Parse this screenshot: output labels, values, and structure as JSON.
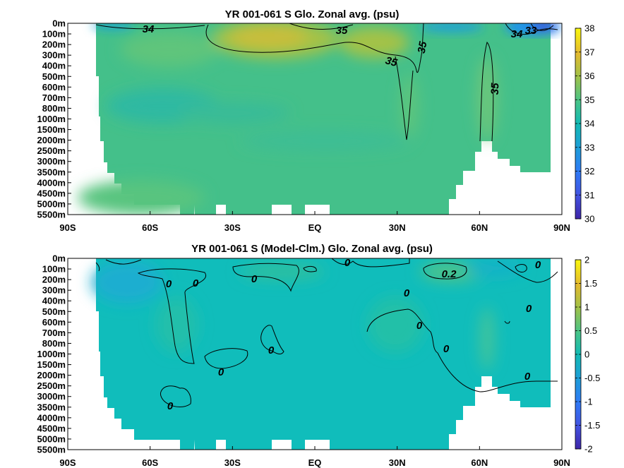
{
  "charts": [
    {
      "title": "YR 001-061 S Glo. Zonal avg. (psu)",
      "colorbar": {
        "ticks": [
          "38",
          "37",
          "36",
          "35",
          "34",
          "33",
          "32",
          "31",
          "30"
        ],
        "range": [
          30,
          38
        ]
      },
      "contour_labels": [
        "34",
        "35",
        "35",
        "35",
        "35",
        "34",
        "33"
      ]
    },
    {
      "title": "YR 001-061 S (Model-Clm.) Glo. Zonal avg. (psu)",
      "colorbar": {
        "ticks": [
          "2",
          "1.5",
          "1",
          "0.5",
          "0",
          "-0.5",
          "-1",
          "-1.5",
          "-2"
        ],
        "range": [
          -2,
          2
        ]
      },
      "contour_labels": [
        "0",
        "0",
        "0",
        "0.2",
        "0",
        "0",
        "0",
        "0",
        "0",
        "0",
        "0",
        "0",
        "0",
        "0"
      ]
    }
  ],
  "axes": {
    "y_ticks": [
      "0m",
      "100m",
      "200m",
      "300m",
      "400m",
      "500m",
      "600m",
      "700m",
      "800m",
      "1000m",
      "1500m",
      "2000m",
      "2500m",
      "3000m",
      "3500m",
      "4000m",
      "4500m",
      "5000m",
      "5500m"
    ],
    "x_ticks": [
      "90S",
      "60S",
      "30S",
      "EQ",
      "30N",
      "60N",
      "90N"
    ]
  },
  "chart_data": [
    {
      "type": "heatmap",
      "title": "YR 001-061 S Glo. Zonal avg. (psu)",
      "x": [
        "90S",
        "60S",
        "30S",
        "EQ",
        "30N",
        "60N",
        "90N"
      ],
      "y": [
        "0m",
        "100m",
        "200m",
        "300m",
        "400m",
        "500m",
        "600m",
        "700m",
        "800m",
        "1000m",
        "1500m",
        "2000m",
        "2500m",
        "3000m",
        "3500m",
        "4000m",
        "4500m",
        "5000m",
        "5500m"
      ],
      "colorbar_range": [
        30,
        38
      ],
      "contour_levels": [
        33,
        34,
        35
      ],
      "notes_values": {
        "background_deep": 34.7,
        "subtropical_max": 36.5,
        "arctic_surface": 32.5
      }
    },
    {
      "type": "heatmap",
      "title": "YR 001-061 S (Model-Clm.) Glo. Zonal avg. (psu)",
      "x": [
        "90S",
        "60S",
        "30S",
        "EQ",
        "30N",
        "60N",
        "90N"
      ],
      "y": [
        "0m",
        "100m",
        "200m",
        "300m",
        "400m",
        "500m",
        "600m",
        "700m",
        "800m",
        "1000m",
        "1500m",
        "2000m",
        "2500m",
        "3000m",
        "3500m",
        "4000m",
        "4500m",
        "5000m",
        "5500m"
      ],
      "colorbar_range": [
        -2,
        2
      ],
      "contour_levels": [
        0,
        0.2
      ],
      "notes_values": {
        "background_deep": 0.0
      }
    }
  ]
}
